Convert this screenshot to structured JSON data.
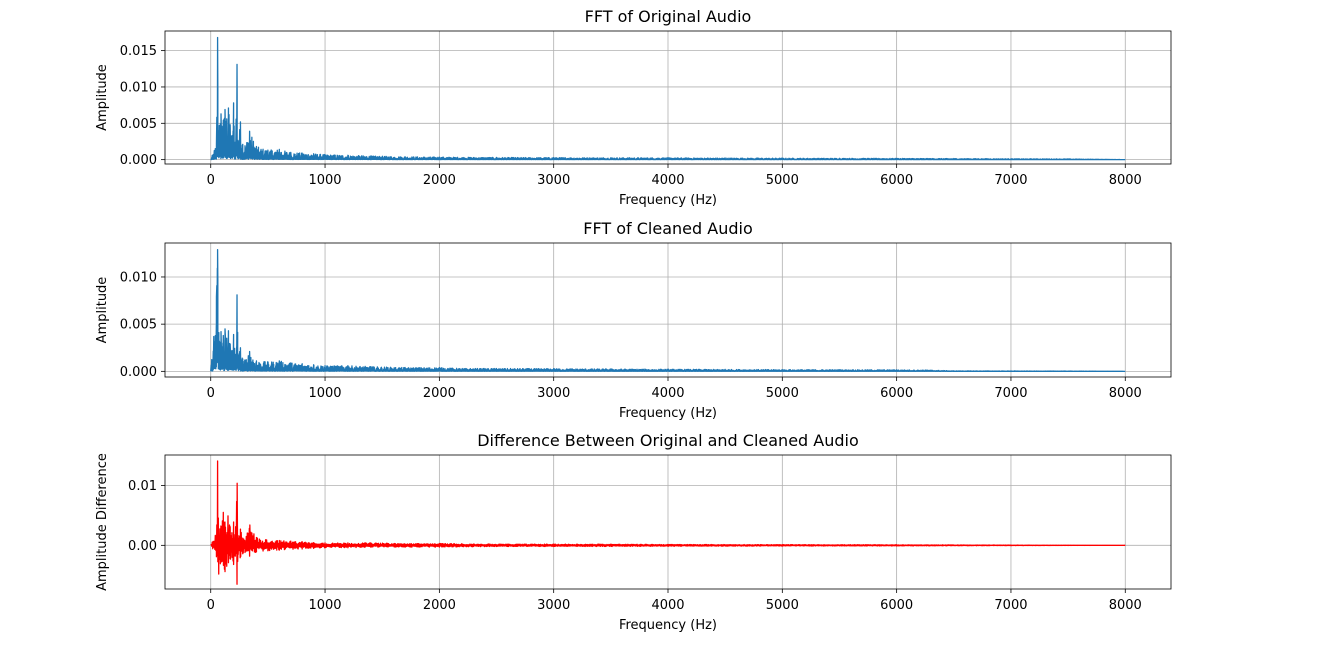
{
  "colors": {
    "series_blue": "#1f77b4",
    "series_red": "#ff0000",
    "grid": "#b0b0b0",
    "axes": "#000000",
    "background": "#ffffff"
  },
  "chart_data": [
    {
      "type": "line",
      "title": "FFT of Original Audio",
      "xlabel": "Frequency (Hz)",
      "ylabel": "Amplitude",
      "xlim": [
        -400,
        8400
      ],
      "ylim": [
        -0.0006,
        0.0177
      ],
      "xticks": [
        0,
        1000,
        2000,
        3000,
        4000,
        5000,
        6000,
        7000,
        8000
      ],
      "yticks": [
        0.0,
        0.005,
        0.01,
        0.015
      ],
      "ytick_labels": [
        "0.000",
        "0.005",
        "0.010",
        "0.015"
      ],
      "grid": true,
      "color": "#1f77b4",
      "series": [
        {
          "x": [
            0,
            50,
            60,
            75,
            90,
            110,
            125,
            140,
            155,
            170,
            185,
            200,
            215,
            230,
            240,
            260,
            280,
            300,
            340,
            400,
            500,
            600,
            700,
            800,
            900,
            1000,
            1200,
            1400,
            1700,
            2000,
            2500,
            3000,
            3500,
            4000,
            4500,
            5000,
            5500,
            6000,
            6500,
            7000,
            7500,
            8000
          ],
          "y": [
            0.0,
            0.0022,
            0.0168,
            0.0047,
            0.0063,
            0.0054,
            0.0069,
            0.0056,
            0.0071,
            0.0048,
            0.0033,
            0.0078,
            0.0024,
            0.0131,
            0.0026,
            0.0052,
            0.0021,
            0.0019,
            0.0039,
            0.0018,
            0.0013,
            0.0014,
            0.001,
            0.0009,
            0.0008,
            0.0007,
            0.0006,
            0.0005,
            0.0004,
            0.00035,
            0.0003,
            0.00028,
            0.00026,
            0.00025,
            0.00022,
            0.0002,
            0.00018,
            0.00017,
            0.00015,
            0.00012,
            0.0001,
            0.0
          ]
        }
      ]
    },
    {
      "type": "line",
      "title": "FFT of Cleaned Audio",
      "xlabel": "Frequency (Hz)",
      "ylabel": "Amplitude",
      "xlim": [
        -400,
        8400
      ],
      "ylim": [
        -0.0006,
        0.0136
      ],
      "xticks": [
        0,
        1000,
        2000,
        3000,
        4000,
        5000,
        6000,
        7000,
        8000
      ],
      "yticks": [
        0.0,
        0.005,
        0.01
      ],
      "ytick_labels": [
        "0.000",
        "0.005",
        "0.010"
      ],
      "grid": true,
      "color": "#1f77b4",
      "series": [
        {
          "x": [
            0,
            50,
            60,
            75,
            90,
            110,
            125,
            140,
            155,
            170,
            185,
            200,
            215,
            230,
            240,
            260,
            280,
            300,
            340,
            400,
            500,
            600,
            700,
            800,
            900,
            1000,
            1200,
            1400,
            1700,
            2000,
            2200,
            2500,
            3000,
            3500,
            4000,
            4500,
            5000,
            5500,
            6000,
            6250,
            6500,
            7000,
            7500,
            8000
          ],
          "y": [
            0.0,
            0.0079,
            0.0129,
            0.0032,
            0.0042,
            0.0038,
            0.0045,
            0.0035,
            0.0043,
            0.0029,
            0.0022,
            0.0039,
            0.0018,
            0.0081,
            0.0017,
            0.0025,
            0.0013,
            0.0012,
            0.0021,
            0.0011,
            0.001,
            0.0011,
            0.0009,
            0.0008,
            0.0007,
            0.0006,
            0.0006,
            0.0005,
            0.0004,
            0.0004,
            0.0003,
            0.0003,
            0.00028,
            0.00025,
            0.00022,
            0.0002,
            0.00018,
            0.00017,
            0.00016,
            0.00014,
            5e-05,
            4e-05,
            3e-05,
            0.0
          ]
        }
      ]
    },
    {
      "type": "line",
      "title": "Difference Between Original and Cleaned Audio",
      "xlabel": "Frequency (Hz)",
      "ylabel": "Amplitude Difference",
      "xlim": [
        -400,
        8400
      ],
      "ylim": [
        -0.0073,
        0.0151
      ],
      "xticks": [
        0,
        1000,
        2000,
        3000,
        4000,
        5000,
        6000,
        7000,
        8000
      ],
      "yticks": [
        0.0,
        0.01
      ],
      "ytick_labels": [
        "0.00",
        "0.01"
      ],
      "grid": true,
      "color": "#ff0000",
      "series": [
        {
          "x": [
            0,
            50,
            60,
            70,
            90,
            110,
            125,
            140,
            155,
            170,
            185,
            200,
            215,
            230,
            240,
            260,
            280,
            300,
            340,
            400,
            500,
            600,
            700,
            800,
            900,
            1000,
            1200,
            1400,
            1700,
            2000,
            2500,
            3000,
            3500,
            4000,
            5000,
            6000,
            7000,
            8000
          ],
          "y_max": [
            0.0,
            0.0021,
            0.0141,
            0.0019,
            0.0047,
            0.0055,
            0.0051,
            0.0041,
            0.0073,
            0.0031,
            0.0021,
            0.0039,
            0.0011,
            0.0121,
            0.0016,
            0.0027,
            0.0012,
            0.0011,
            0.0036,
            0.0013,
            0.0009,
            0.0008,
            0.0007,
            0.0006,
            0.0005,
            0.0004,
            0.0004,
            0.0004,
            0.0003,
            0.0003,
            0.0002,
            0.0002,
            0.0002,
            0.00015,
            0.00012,
            0.0001,
            5e-05,
            0.0
          ],
          "y_min": [
            0.0,
            -0.0019,
            -0.0025,
            -0.0048,
            -0.0028,
            -0.0041,
            -0.0044,
            -0.0035,
            -0.0029,
            -0.0038,
            -0.0021,
            -0.0032,
            -0.0018,
            -0.0065,
            -0.0015,
            -0.0022,
            -0.0014,
            -0.0012,
            -0.0018,
            -0.0011,
            -0.0009,
            -0.0008,
            -0.0007,
            -0.0006,
            -0.0005,
            -0.0004,
            -0.0004,
            -0.0003,
            -0.0003,
            -0.0003,
            -0.0002,
            -0.0002,
            -0.0002,
            -0.00015,
            -0.00012,
            -0.0001,
            -5e-05,
            0.0
          ]
        }
      ]
    }
  ]
}
